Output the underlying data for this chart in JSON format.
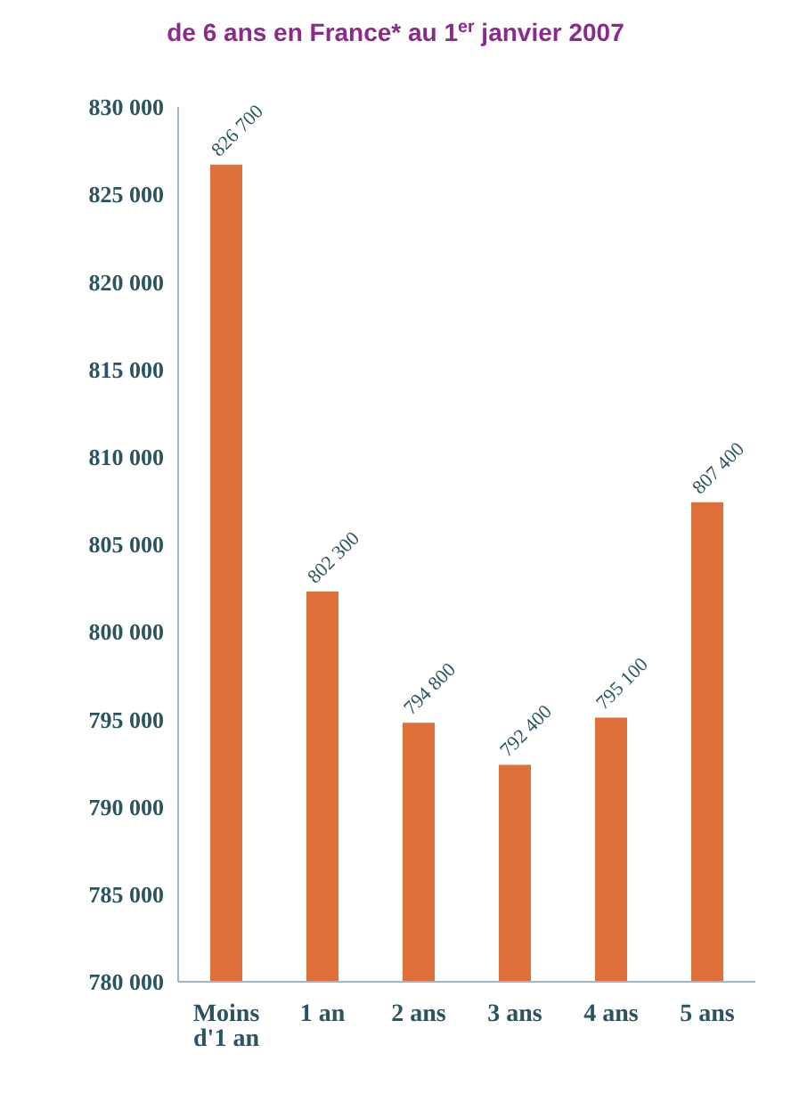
{
  "chart_data": {
    "type": "bar",
    "title": "de 6 ans en France* au 1$^{er}$ janvier 2007",
    "categories": [
      "Moins d'1 an",
      "1 an",
      "2 ans",
      "3 ans",
      "4 ans",
      "5 ans"
    ],
    "values": [
      826700,
      802300,
      794800,
      792400,
      795100,
      807400
    ],
    "value_labels": [
      "826 700",
      "802 300",
      "794 800",
      "792 400",
      "795 100",
      "807 400"
    ],
    "color": "#e0703a",
    "ylim": [
      780000,
      830000
    ],
    "yticks": [
      {
        "value": 780000,
        "label": "780 000"
      },
      {
        "value": 785000,
        "label": "785 000"
      },
      {
        "value": 790000,
        "label": "790 000"
      },
      {
        "value": 795000,
        "label": "795 000"
      },
      {
        "value": 800000,
        "label": "800 000"
      },
      {
        "value": 805000,
        "label": "805 000"
      },
      {
        "value": 810000,
        "label": "810 000"
      },
      {
        "value": 815000,
        "label": "815 000"
      },
      {
        "value": 820000,
        "label": "820 000"
      },
      {
        "value": 825000,
        "label": "825 000"
      },
      {
        "value": 830000,
        "label": "830 000"
      }
    ],
    "grid": false,
    "legend": false
  }
}
